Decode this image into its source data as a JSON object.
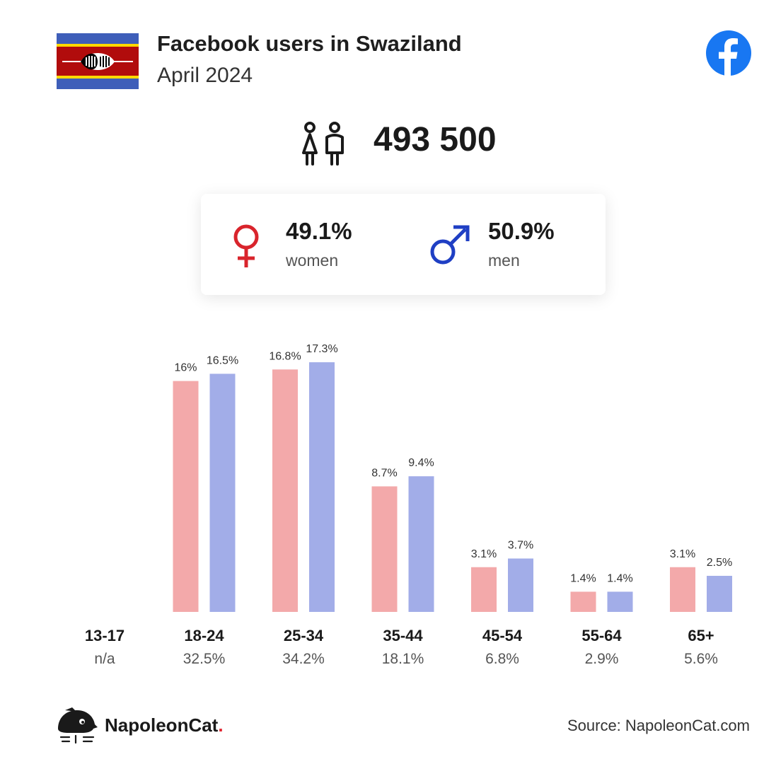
{
  "header": {
    "title": "Facebook users in Swaziland",
    "subtitle": "April 2024"
  },
  "summary": {
    "total_users": "493 500",
    "women_pct": "49.1%",
    "women_label": "women",
    "men_pct": "50.9%",
    "men_label": "men"
  },
  "colors": {
    "women": "#f3a9aa",
    "men": "#a2ade8",
    "female_icon": "#d9242c",
    "male_icon": "#1f3fc4",
    "facebook": "#1877f2"
  },
  "footer": {
    "brand": "NapoleonCat",
    "brand_dot": ".",
    "source": "Source: NapoleonCat.com"
  },
  "chart_data": {
    "type": "bar",
    "categories": [
      "13-17",
      "18-24",
      "25-34",
      "35-44",
      "45-54",
      "55-64",
      "65+"
    ],
    "category_totals": [
      "n/a",
      "32.5%",
      "34.2%",
      "18.1%",
      "6.8%",
      "2.9%",
      "5.6%"
    ],
    "series": [
      {
        "name": "women",
        "values": [
          null,
          16,
          16.8,
          8.7,
          3.1,
          1.4,
          3.1
        ],
        "labels": [
          null,
          "16%",
          "16.8%",
          "8.7%",
          "3.1%",
          "1.4%",
          "3.1%"
        ]
      },
      {
        "name": "men",
        "values": [
          null,
          16.5,
          17.3,
          9.4,
          3.7,
          1.4,
          2.5
        ],
        "labels": [
          null,
          "16.5%",
          "17.3%",
          "9.4%",
          "3.7%",
          "1.4%",
          "2.5%"
        ]
      }
    ],
    "grid": false,
    "legend": "none"
  }
}
